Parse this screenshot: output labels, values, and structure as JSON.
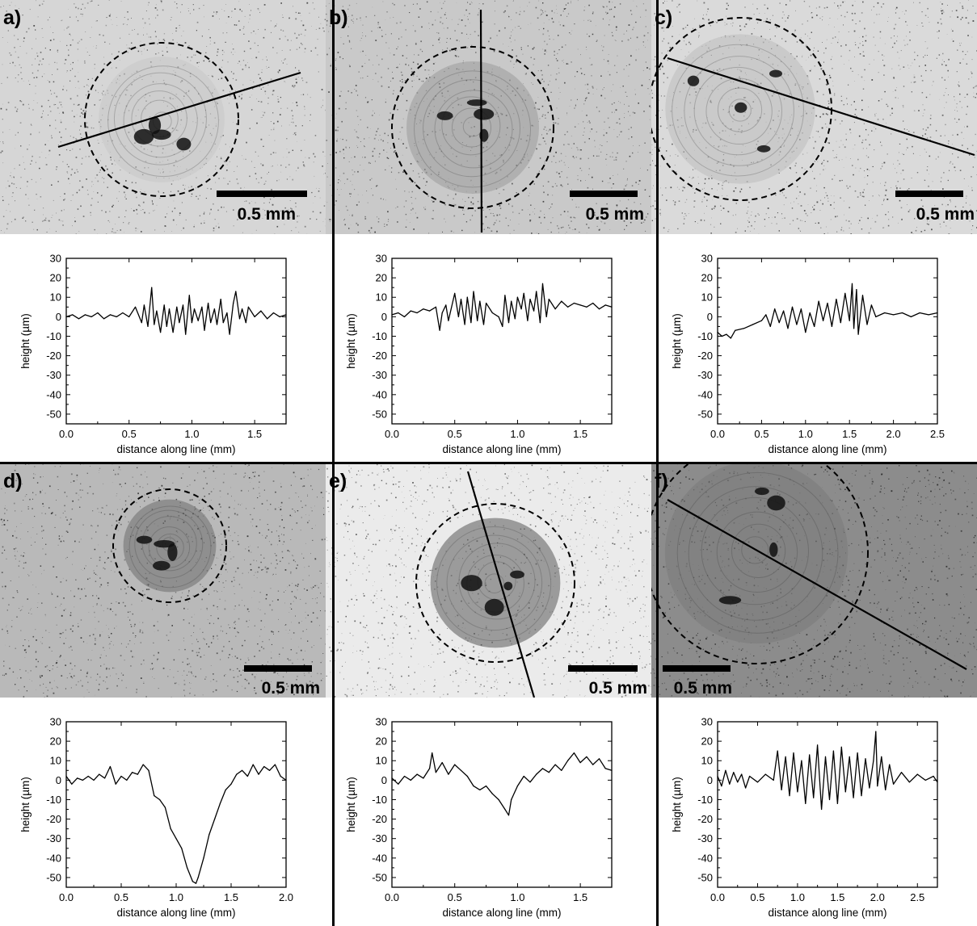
{
  "figure": {
    "scale_bar_text": "0.5 mm",
    "panels": [
      {
        "label": "a)",
        "image": {
          "background": "#d6d6d6",
          "speckle": "#444444",
          "rim": "dashed-circle",
          "crater_fill": "#c8c8c8",
          "line_orientation": "diagonal-up",
          "scalebar_side": "right"
        }
      },
      {
        "label": "b)",
        "image": {
          "background": "#c9c9c9",
          "speckle": "#3a3a3a",
          "rim": "dashed-circle",
          "crater_fill": "#9a9a9a",
          "line_orientation": "vertical",
          "scalebar_side": "right"
        }
      },
      {
        "label": "c)",
        "image": {
          "background": "#dadada",
          "speckle": "#3c3c3c",
          "rim": "dashed-circle",
          "crater_fill": "#bdbdbd",
          "line_orientation": "diagonal-down",
          "scalebar_side": "right"
        }
      },
      {
        "label": "d)",
        "image": {
          "background": "#b9b9b9",
          "speckle": "#333333",
          "rim": "dashed-circle",
          "crater_fill": "#6e6e6e",
          "line_orientation": "none",
          "scalebar_side": "right"
        }
      },
      {
        "label": "e)",
        "image": {
          "background": "#ebebeb",
          "speckle": "#555555",
          "rim": "dashed-circle",
          "crater_fill": "#5a5a5a",
          "line_orientation": "steep",
          "scalebar_side": "right"
        }
      },
      {
        "label": "f)",
        "image": {
          "background": "#8c8c8c",
          "speckle": "#2a2a2a",
          "rim": "dashed-circle",
          "crater_fill": "#7a7a7a",
          "line_orientation": "diagonal-down",
          "scalebar_side": "left"
        }
      }
    ]
  },
  "chart_data": [
    {
      "panel": "a)",
      "type": "line",
      "xlabel": "distance along line (mm)",
      "ylabel": "height (µm)",
      "xlim": [
        0,
        1.75
      ],
      "ylim": [
        -55,
        30
      ],
      "xticks": [
        "0.0",
        "0.5",
        "1.0",
        "1.5"
      ],
      "xtick_values": [
        0,
        0.5,
        1.0,
        1.5
      ],
      "yticks": [
        30,
        20,
        10,
        0,
        -10,
        -20,
        -30,
        -40,
        -50
      ],
      "series": [
        {
          "x": [
            0,
            0.05,
            0.1,
            0.15,
            0.2,
            0.25,
            0.3,
            0.35,
            0.4,
            0.45,
            0.5,
            0.55,
            0.6,
            0.62,
            0.65,
            0.68,
            0.7,
            0.72,
            0.75,
            0.78,
            0.8,
            0.82,
            0.85,
            0.88,
            0.9,
            0.93,
            0.95,
            0.98,
            1.0,
            1.02,
            1.05,
            1.08,
            1.1,
            1.13,
            1.15,
            1.18,
            1.2,
            1.23,
            1.25,
            1.28,
            1.3,
            1.33,
            1.35,
            1.38,
            1.4,
            1.43,
            1.45,
            1.5,
            1.55,
            1.6,
            1.65,
            1.7,
            1.75
          ],
          "y": [
            0,
            1,
            -1,
            1,
            0,
            2,
            -1,
            1,
            0,
            2,
            0,
            5,
            -3,
            6,
            -5,
            15,
            -4,
            3,
            -8,
            6,
            -5,
            4,
            -8,
            5,
            -3,
            6,
            -9,
            11,
            -3,
            4,
            -2,
            5,
            -7,
            7,
            -3,
            4,
            -4,
            9,
            -3,
            2,
            -9,
            7,
            13,
            -1,
            4,
            -3,
            5,
            0,
            3,
            -1,
            2,
            0,
            1
          ]
        }
      ]
    },
    {
      "panel": "b)",
      "type": "line",
      "xlabel": "distance along line (mm)",
      "ylabel": "height (µm)",
      "xlim": [
        0,
        1.75
      ],
      "ylim": [
        -55,
        30
      ],
      "xticks": [
        "0.0",
        "0.5",
        "1.0",
        "1.5"
      ],
      "xtick_values": [
        0,
        0.5,
        1.0,
        1.5
      ],
      "yticks": [
        30,
        20,
        10,
        0,
        -10,
        -20,
        -30,
        -40,
        -50
      ],
      "series": [
        {
          "x": [
            0,
            0.05,
            0.1,
            0.15,
            0.2,
            0.25,
            0.3,
            0.35,
            0.38,
            0.4,
            0.43,
            0.45,
            0.5,
            0.53,
            0.55,
            0.58,
            0.6,
            0.63,
            0.65,
            0.68,
            0.7,
            0.73,
            0.75,
            0.8,
            0.85,
            0.88,
            0.9,
            0.93,
            0.95,
            0.98,
            1.0,
            1.03,
            1.05,
            1.08,
            1.1,
            1.13,
            1.15,
            1.18,
            1.2,
            1.23,
            1.25,
            1.3,
            1.35,
            1.4,
            1.45,
            1.5,
            1.55,
            1.6,
            1.65,
            1.7,
            1.75
          ],
          "y": [
            1,
            2,
            0,
            3,
            2,
            4,
            3,
            5,
            -7,
            2,
            6,
            -2,
            12,
            0,
            9,
            -4,
            10,
            -3,
            13,
            -2,
            8,
            -4,
            7,
            2,
            0,
            -5,
            11,
            -3,
            8,
            -1,
            10,
            4,
            12,
            -2,
            9,
            3,
            13,
            -3,
            17,
            0,
            9,
            4,
            8,
            5,
            7,
            6,
            5,
            7,
            4,
            6,
            5
          ]
        }
      ]
    },
    {
      "panel": "c)",
      "type": "line",
      "xlabel": "distance along line (mm)",
      "ylabel": "height (µm)",
      "xlim": [
        0,
        2.5
      ],
      "ylim": [
        -55,
        30
      ],
      "xticks": [
        "0.0",
        "0.5",
        "1.0",
        "1.5",
        "2.0",
        "2.5"
      ],
      "xtick_values": [
        0,
        0.5,
        1.0,
        1.5,
        2.0,
        2.5
      ],
      "yticks": [
        30,
        20,
        10,
        0,
        -10,
        -20,
        -30,
        -40,
        -50
      ],
      "series": [
        {
          "x": [
            0,
            0.05,
            0.1,
            0.15,
            0.2,
            0.3,
            0.4,
            0.5,
            0.55,
            0.6,
            0.65,
            0.7,
            0.75,
            0.8,
            0.85,
            0.9,
            0.95,
            1.0,
            1.05,
            1.1,
            1.15,
            1.2,
            1.25,
            1.3,
            1.35,
            1.4,
            1.45,
            1.5,
            1.53,
            1.55,
            1.58,
            1.6,
            1.65,
            1.7,
            1.75,
            1.8,
            1.9,
            2.0,
            2.1,
            2.2,
            2.3,
            2.4,
            2.5
          ],
          "y": [
            -8,
            -10,
            -9,
            -11,
            -7,
            -6,
            -4,
            -2,
            1,
            -5,
            4,
            -3,
            3,
            -6,
            5,
            -4,
            4,
            -8,
            2,
            -5,
            8,
            -2,
            7,
            -5,
            9,
            -3,
            12,
            -2,
            17,
            -6,
            14,
            -9,
            11,
            -4,
            6,
            0,
            2,
            1,
            2,
            0,
            2,
            1,
            2
          ]
        }
      ]
    },
    {
      "panel": "d)",
      "type": "line",
      "xlabel": "distance along line (mm)",
      "ylabel": "height (µm)",
      "xlim": [
        0,
        2.0
      ],
      "ylim": [
        -55,
        30
      ],
      "xticks": [
        "0.0",
        "0.5",
        "1.0",
        "1.5",
        "2.0"
      ],
      "xtick_values": [
        0,
        0.5,
        1.0,
        1.5,
        2.0
      ],
      "yticks": [
        30,
        20,
        10,
        0,
        -10,
        -20,
        -30,
        -40,
        -50
      ],
      "series": [
        {
          "x": [
            0,
            0.05,
            0.1,
            0.15,
            0.2,
            0.25,
            0.3,
            0.35,
            0.4,
            0.45,
            0.5,
            0.55,
            0.6,
            0.65,
            0.7,
            0.75,
            0.8,
            0.85,
            0.9,
            0.95,
            1.0,
            1.05,
            1.1,
            1.15,
            1.18,
            1.2,
            1.25,
            1.3,
            1.35,
            1.4,
            1.45,
            1.5,
            1.55,
            1.6,
            1.65,
            1.7,
            1.75,
            1.8,
            1.85,
            1.9,
            1.95,
            2.0
          ],
          "y": [
            2,
            -2,
            1,
            0,
            2,
            0,
            3,
            1,
            7,
            -2,
            2,
            0,
            4,
            3,
            8,
            5,
            -8,
            -10,
            -14,
            -25,
            -30,
            -35,
            -45,
            -52,
            -53,
            -50,
            -40,
            -28,
            -20,
            -12,
            -5,
            -2,
            3,
            5,
            2,
            8,
            3,
            7,
            5,
            8,
            2,
            0
          ]
        }
      ]
    },
    {
      "panel": "e)",
      "type": "line",
      "xlabel": "distance along line (mm)",
      "ylabel": "height (µm)",
      "xlim": [
        0,
        1.75
      ],
      "ylim": [
        -55,
        30
      ],
      "xticks": [
        "0.0",
        "0.5",
        "1.0",
        "1.5"
      ],
      "xtick_values": [
        0,
        0.5,
        1.0,
        1.5
      ],
      "yticks": [
        30,
        20,
        10,
        0,
        -10,
        -20,
        -30,
        -40,
        -50
      ],
      "series": [
        {
          "x": [
            0,
            0.05,
            0.1,
            0.15,
            0.2,
            0.25,
            0.3,
            0.32,
            0.35,
            0.4,
            0.45,
            0.5,
            0.55,
            0.6,
            0.65,
            0.7,
            0.75,
            0.8,
            0.85,
            0.9,
            0.93,
            0.95,
            1.0,
            1.05,
            1.1,
            1.15,
            1.2,
            1.25,
            1.3,
            1.35,
            1.4,
            1.45,
            1.5,
            1.55,
            1.6,
            1.65,
            1.7,
            1.75
          ],
          "y": [
            1,
            -2,
            2,
            0,
            3,
            1,
            6,
            14,
            4,
            9,
            3,
            8,
            5,
            2,
            -3,
            -5,
            -3,
            -7,
            -10,
            -15,
            -18,
            -10,
            -3,
            2,
            -1,
            3,
            6,
            4,
            8,
            5,
            10,
            14,
            9,
            12,
            8,
            11,
            6,
            5
          ]
        }
      ]
    },
    {
      "panel": "f)",
      "type": "line",
      "xlabel": "distance along line (mm)",
      "ylabel": "height (µm)",
      "xlim": [
        0,
        2.75
      ],
      "ylim": [
        -55,
        30
      ],
      "xticks": [
        "0.0",
        "0.5",
        "1.0",
        "1.5",
        "2.0",
        "2.5"
      ],
      "xtick_values": [
        0,
        0.5,
        1.0,
        1.5,
        2.0,
        2.5
      ],
      "yticks": [
        30,
        20,
        10,
        0,
        -10,
        -20,
        -30,
        -40,
        -50
      ],
      "series": [
        {
          "x": [
            0,
            0.05,
            0.1,
            0.15,
            0.2,
            0.25,
            0.3,
            0.35,
            0.4,
            0.5,
            0.6,
            0.7,
            0.75,
            0.8,
            0.85,
            0.9,
            0.95,
            1.0,
            1.05,
            1.1,
            1.15,
            1.2,
            1.25,
            1.3,
            1.35,
            1.4,
            1.45,
            1.5,
            1.55,
            1.6,
            1.65,
            1.7,
            1.75,
            1.8,
            1.85,
            1.9,
            1.95,
            1.98,
            2.0,
            2.05,
            2.1,
            2.15,
            2.2,
            2.3,
            2.4,
            2.5,
            2.6,
            2.7,
            2.75
          ],
          "y": [
            2,
            -3,
            5,
            -2,
            4,
            -1,
            3,
            -4,
            2,
            -1,
            3,
            0,
            15,
            -5,
            12,
            -8,
            14,
            -6,
            10,
            -12,
            13,
            -9,
            18,
            -15,
            12,
            -10,
            15,
            -12,
            17,
            -6,
            12,
            -9,
            14,
            -8,
            11,
            -4,
            10,
            25,
            -3,
            12,
            -5,
            8,
            -2,
            4,
            -1,
            3,
            0,
            2,
            -1
          ]
        }
      ]
    }
  ]
}
